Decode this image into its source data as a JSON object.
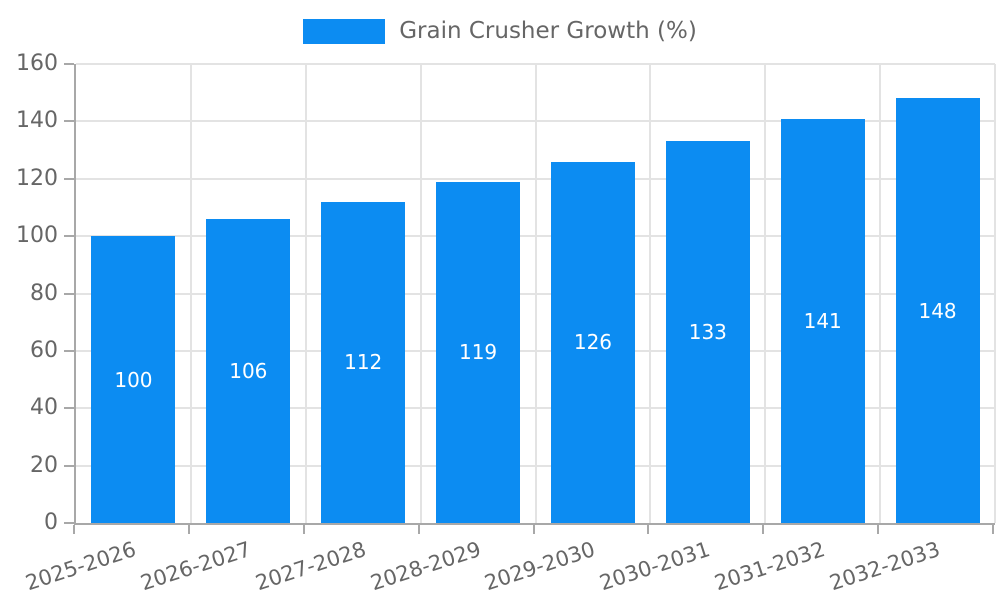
{
  "legend": {
    "label": "Grain Crusher Growth (%)",
    "swatch_color": "#0C8CF2"
  },
  "chart_data": {
    "type": "bar",
    "title": "",
    "xlabel": "",
    "ylabel": "",
    "categories": [
      "2025-2026",
      "2026-2027",
      "2027-2028",
      "2028-2029",
      "2029-2030",
      "2030-2031",
      "2031-2032",
      "2032-2033"
    ],
    "series": [
      {
        "name": "Grain Crusher Growth (%)",
        "values": [
          100,
          106,
          112,
          119,
          126,
          133,
          141,
          148
        ]
      }
    ],
    "value_labels": [
      "100",
      "106",
      "112",
      "119",
      "126",
      "133",
      "141",
      "148"
    ],
    "ylim": [
      0,
      160
    ],
    "yticks": [
      0,
      20,
      40,
      60,
      80,
      100,
      120,
      140,
      160
    ],
    "grid": true,
    "legend_position": "top-center",
    "bar_color": "#0C8CF2",
    "value_label_color": "#ffffff",
    "gridline_color": "#e3e3e3",
    "axis_color": "#a8a8a8",
    "tick_label_color": "#666666",
    "background_color": "#ffffff"
  }
}
